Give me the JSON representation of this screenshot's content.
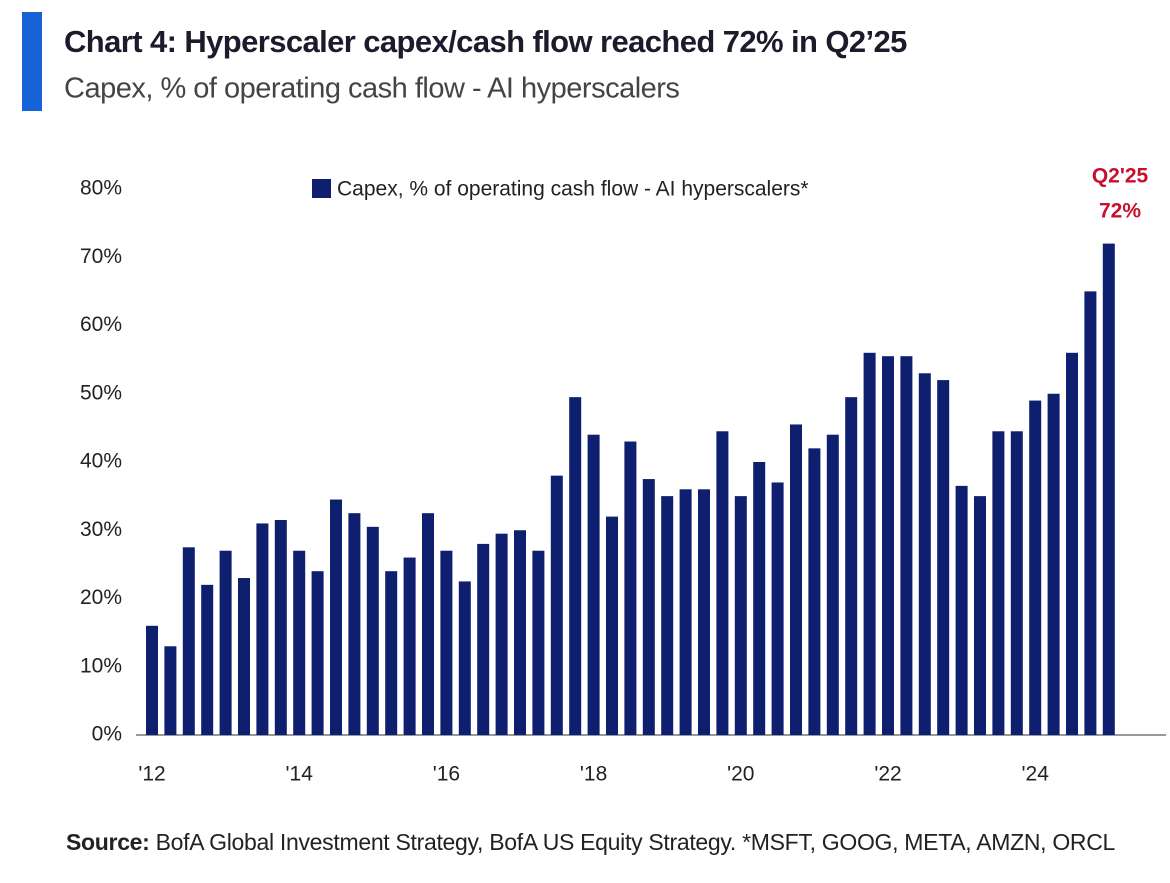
{
  "chart_data": {
    "type": "bar",
    "title": "Chart 4: Hyperscaler capex/cash flow reached 72% in Q2’25",
    "subtitle": "Capex, % of operating cash flow - AI hyperscalers",
    "legend": "Capex, % of operating cash flow - AI hyperscalers*",
    "annotations": [
      "Q2'25",
      "72%"
    ],
    "source_label": "Source:",
    "source": "BofA Global Investment Strategy, BofA US Equity Strategy. *MSFT, GOOG, META, AMZN, ORCL",
    "color": "#0d1f6e",
    "categories": [
      "'12",
      null,
      null,
      null,
      null,
      null,
      null,
      null,
      "'14",
      null,
      null,
      null,
      null,
      null,
      null,
      null,
      "'16",
      null,
      null,
      null,
      null,
      null,
      null,
      null,
      "'18",
      null,
      null,
      null,
      null,
      null,
      null,
      null,
      "'20",
      null,
      null,
      null,
      null,
      null,
      null,
      null,
      "'22",
      null,
      null,
      null,
      null,
      null,
      null,
      null,
      "'24",
      null,
      null,
      null,
      null
    ],
    "values": [
      16,
      13,
      27.5,
      22,
      27,
      23,
      31,
      31.5,
      27,
      24,
      34.5,
      32.5,
      30.5,
      24,
      26,
      32.5,
      27,
      22.5,
      28,
      29.5,
      30,
      27,
      38,
      49.5,
      44,
      32,
      43,
      37.5,
      35,
      36,
      36,
      44.5,
      35,
      40,
      37,
      45.5,
      42,
      44,
      49.5,
      56,
      55.5,
      55.5,
      53,
      52,
      36.5,
      35,
      44.5,
      44.5,
      49,
      50,
      56,
      65,
      72
    ],
    "ylim": [
      0,
      80
    ],
    "yticks": [
      {
        "value": 0,
        "label": "0%"
      },
      {
        "value": 10,
        "label": "10%"
      },
      {
        "value": 20,
        "label": "20%"
      },
      {
        "value": 30,
        "label": "30%"
      },
      {
        "value": 40,
        "label": "40%"
      },
      {
        "value": 50,
        "label": "50%"
      },
      {
        "value": 60,
        "label": "60%"
      },
      {
        "value": 70,
        "label": "70%"
      },
      {
        "value": 80,
        "label": "80%"
      }
    ],
    "grid": false
  }
}
